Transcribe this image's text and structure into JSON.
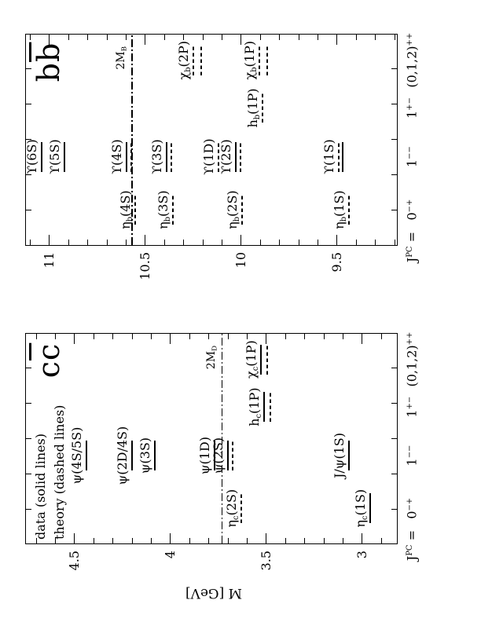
{
  "figure": {
    "mass_axis_label": "M [GeV]",
    "legend": {
      "line1": "data (solid lines)",
      "line2": "theory (dashed lines)"
    },
    "ink_color": "#000000",
    "background_color": "#ffffff"
  },
  "chart_data": [
    {
      "type": "scatter",
      "subtype": "energy-level-diagram",
      "id": "ccbar",
      "title_text": "cc̄",
      "title": {
        "main": "c",
        "bar": "c"
      },
      "ylabel": "M [GeV]",
      "ylim": [
        2.815,
        4.758
      ],
      "yticks": [
        4.5,
        4.0,
        3.5,
        3.0
      ],
      "ytick_labels": [
        "4.5",
        "4",
        "3.5",
        "3"
      ],
      "minor_tick_step": 0.1,
      "grid": false,
      "legend": [
        "data (solid lines)",
        "theory (dashed lines)"
      ],
      "legend_position": "top-left",
      "x_axis_prefix": {
        "main": "J",
        "sup": "PC",
        "after": " ="
      },
      "categories": [
        {
          "id": "0-+",
          "main": "0",
          "sup": "−+"
        },
        {
          "id": "1--",
          "main": "1",
          "sup": "−−"
        },
        {
          "id": "1+-",
          "main": "1",
          "sup": "+−"
        },
        {
          "id": "(0,1,2)++",
          "main": "(0,1,2)",
          "sup": "++"
        }
      ],
      "threshold": {
        "id": "2MD",
        "main": "2M",
        "sub": "D",
        "mass": 3.73,
        "style": "dash-dot"
      },
      "levels": [
        {
          "id": "eta-c-1s",
          "pre": "η",
          "sub": "c",
          "post": "(1S)",
          "col": 0,
          "lines": [
            {
              "mass": 2.96,
              "style": "solid"
            }
          ]
        },
        {
          "id": "eta-c-2s",
          "pre": "η",
          "sub": "c",
          "post": "(2S)",
          "col": 0,
          "lines": [
            {
              "mass": 3.63,
              "style": "dashed"
            }
          ]
        },
        {
          "id": "jpsi-1s",
          "pre": "J/ψ",
          "sub": "",
          "post": "(1S)",
          "col": 1,
          "lines": [
            {
              "mass": 3.07,
              "style": "solid"
            }
          ]
        },
        {
          "id": "psi-2s",
          "pre": "ψ",
          "sub": "",
          "post": "(2S)",
          "col": 1,
          "lines": [
            {
              "mass": 3.7,
              "style": "solid"
            },
            {
              "mass": 3.675,
              "style": "dashed"
            }
          ]
        },
        {
          "id": "psi-1d",
          "pre": "ψ",
          "sub": "",
          "post": "(1D)",
          "col": 1,
          "lines": [
            {
              "mass": 3.77,
              "style": "solid"
            }
          ]
        },
        {
          "id": "psi-3s",
          "pre": "ψ",
          "sub": "",
          "post": "(3S)",
          "col": 1,
          "lines": [
            {
              "mass": 4.08,
              "style": "solid"
            }
          ]
        },
        {
          "id": "psi-2d4s",
          "pre": "ψ",
          "sub": "",
          "post": "(2D/4S)",
          "col": 1,
          "lines": [
            {
              "mass": 4.2,
              "style": "solid"
            }
          ]
        },
        {
          "id": "psi-4s5s",
          "pre": "ψ",
          "sub": "",
          "post": "(4S/5S)",
          "col": 1,
          "lines": [
            {
              "mass": 4.44,
              "style": "solid"
            }
          ]
        },
        {
          "id": "h-c-1p",
          "pre": "h",
          "sub": "c",
          "post": "(1P)",
          "col": 2,
          "lines": [
            {
              "mass": 3.51,
              "style": "solid"
            },
            {
              "mass": 3.48,
              "style": "dashed"
            }
          ]
        },
        {
          "id": "chi-c-1p",
          "pre": "χ",
          "sub": "c",
          "post": "(1P)",
          "col": 3,
          "lines": [
            {
              "mass": 3.53,
              "style": "solid"
            },
            {
              "mass": 3.495,
              "style": "dashed"
            }
          ]
        }
      ]
    },
    {
      "type": "scatter",
      "subtype": "energy-level-diagram",
      "id": "bbbar",
      "title_text": "bb̄",
      "title": {
        "main": "b",
        "bar": "b"
      },
      "ylabel": "M [GeV]",
      "ylim": [
        9.184,
        11.127
      ],
      "yticks": [
        11.0,
        10.5,
        10.0,
        9.5
      ],
      "ytick_labels": [
        "11",
        "10.5",
        "10",
        "9.5"
      ],
      "minor_tick_step": 0.1,
      "grid": false,
      "x_axis_prefix": {
        "main": "J",
        "sup": "PC",
        "after": " ="
      },
      "categories": [
        {
          "id": "0-+",
          "main": "0",
          "sup": "−+"
        },
        {
          "id": "1--",
          "main": "1",
          "sup": "−−"
        },
        {
          "id": "1+-",
          "main": "1",
          "sup": "+−"
        },
        {
          "id": "(0,1,2)++",
          "main": "(0,1,2)",
          "sup": "++"
        }
      ],
      "threshold": {
        "id": "2MB",
        "main": "2M",
        "sub": "B",
        "mass": 10.57,
        "style": "dash-dot"
      },
      "levels": [
        {
          "id": "eta-b-1s",
          "pre": "η",
          "sub": "b",
          "post": "(1S)",
          "col": 0,
          "lines": [
            {
              "mass": 9.44,
              "style": "dashed"
            }
          ]
        },
        {
          "id": "eta-b-2s",
          "pre": "η",
          "sub": "b",
          "post": "(2S)",
          "col": 0,
          "lines": [
            {
              "mass": 9.995,
              "style": "dashed"
            }
          ]
        },
        {
          "id": "eta-b-3s",
          "pre": "η",
          "sub": "b",
          "post": "(3S)",
          "col": 0,
          "lines": [
            {
              "mass": 10.355,
              "style": "dashed"
            }
          ]
        },
        {
          "id": "eta-b-4s",
          "pre": "η",
          "sub": "b",
          "post": "(4S)",
          "col": 0,
          "lines": [
            {
              "mass": 10.555,
              "style": "dashed"
            }
          ]
        },
        {
          "id": "upsilon-1s",
          "pre": "ϒ",
          "sub": "",
          "post": "(1S)",
          "col": 1,
          "lines": [
            {
              "mass": 9.49,
              "style": "dashed"
            },
            {
              "mass": 9.47,
              "style": "solid"
            }
          ]
        },
        {
          "id": "upsilon-2s",
          "pre": "ϒ",
          "sub": "",
          "post": "(2S)",
          "col": 1,
          "lines": [
            {
              "mass": 10.03,
              "style": "solid"
            },
            {
              "mass": 10.005,
              "style": "dashed"
            }
          ]
        },
        {
          "id": "upsilon-1d",
          "pre": "ϒ",
          "sub": "",
          "post": "(1D)",
          "col": 1,
          "lines": [
            {
              "mass": 10.12,
              "style": "dashed"
            }
          ]
        },
        {
          "id": "upsilon-3s",
          "pre": "ϒ",
          "sub": "",
          "post": "(3S)",
          "col": 1,
          "lines": [
            {
              "mass": 10.39,
              "style": "solid"
            },
            {
              "mass": 10.365,
              "style": "dashed"
            }
          ]
        },
        {
          "id": "upsilon-4s",
          "pre": "ϒ",
          "sub": "",
          "post": "(4S)",
          "col": 1,
          "lines": [
            {
              "mass": 10.6,
              "style": "solid"
            },
            {
              "mass": 10.575,
              "style": "dashed"
            }
          ]
        },
        {
          "id": "upsilon-5s",
          "pre": "ϒ",
          "sub": "",
          "post": "(5S)",
          "col": 1,
          "lines": [
            {
              "mass": 10.92,
              "style": "solid"
            }
          ]
        },
        {
          "id": "upsilon-6s",
          "pre": "ϒ",
          "sub": "",
          "post": "(6S)",
          "col": 1,
          "lines": [
            {
              "mass": 11.04,
              "style": "solid"
            }
          ]
        },
        {
          "id": "h-b-1p",
          "pre": "h",
          "sub": "b",
          "post": "(1P)",
          "col": 2,
          "lines": [
            {
              "mass": 9.89,
              "style": "dashed"
            }
          ]
        },
        {
          "id": "chi-b-1p",
          "pre": "χ",
          "sub": "b",
          "post": "(1P)",
          "col": 3,
          "lines": [
            {
              "mass": 9.905,
              "style": "dashed"
            },
            {
              "mass": 9.865,
              "style": "dashed"
            }
          ]
        },
        {
          "id": "chi-b-2p",
          "pre": "χ",
          "sub": "b",
          "post": "(2P)",
          "col": 3,
          "lines": [
            {
              "mass": 10.25,
              "style": "dashed"
            },
            {
              "mass": 10.21,
              "style": "dashed"
            }
          ]
        }
      ]
    }
  ]
}
